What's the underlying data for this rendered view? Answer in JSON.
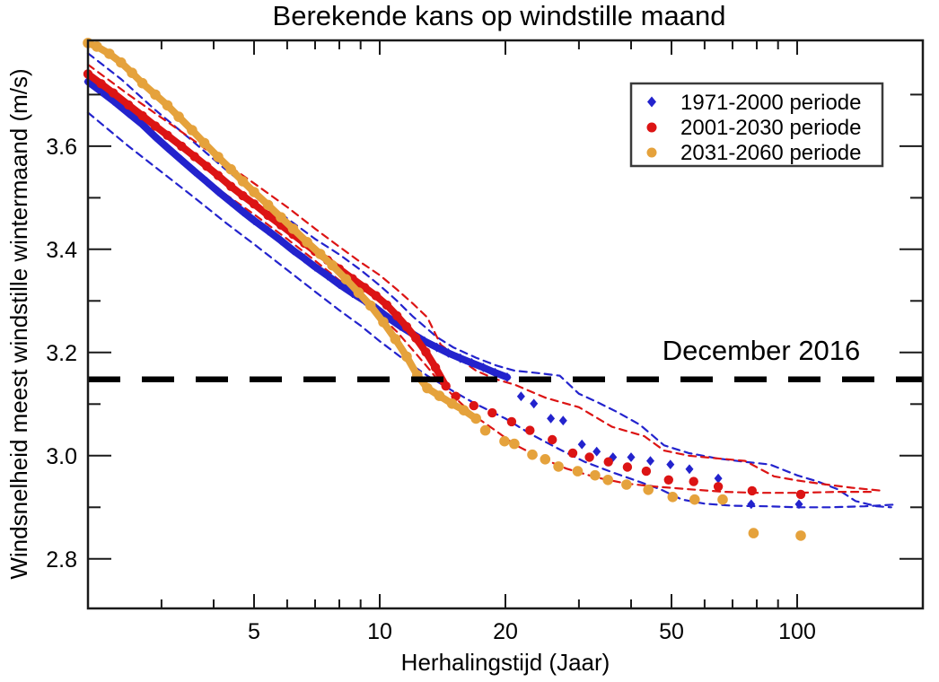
{
  "title": "Berekende kans op windstille maand",
  "annotation": {
    "label": "December 2016"
  },
  "legend": {
    "items": [
      {
        "label": "1971-2000 periode",
        "color": "#2323cd",
        "marker": "diamond"
      },
      {
        "label": "2001-2030 periode",
        "color": "#dc1414",
        "marker": "circle"
      },
      {
        "label": "2031-2060 periode",
        "color": "#e5a23c",
        "marker": "circle"
      }
    ]
  },
  "colors": {
    "series_blue": "#2323cd",
    "series_red": "#dc1414",
    "series_orange": "#e5a23c",
    "reference_line": "#000000",
    "frame": "#1a1a1a"
  },
  "chart_data": {
    "type": "scatter",
    "title": "Berekende kans op windstille maand",
    "xlabel": "Herhalingstijd (Jaar)",
    "ylabel": "Windsnelheid meest windstille wintermaand (m/s)",
    "x_scale": "log",
    "xlim": [
      2,
      200
    ],
    "ylim": [
      2.704,
      3.805
    ],
    "grid": false,
    "legend_position": "upper right",
    "x_ticks_major": [
      5,
      10,
      20,
      50,
      100
    ],
    "x_tick_labels": [
      "5",
      "10",
      "20",
      "50",
      "100"
    ],
    "x_ticks_minor": [
      3,
      4,
      6,
      7,
      8,
      9,
      30,
      40,
      60,
      70,
      80,
      90
    ],
    "y_ticks_major": [
      2.8,
      3.0,
      3.2,
      3.4,
      3.6
    ],
    "y_tick_labels": [
      "2.8",
      "3.0",
      "3.2",
      "3.4",
      "3.6"
    ],
    "y_ticks_minor": [
      2.9,
      3.1,
      3.3,
      3.5,
      3.7
    ],
    "reference_line": {
      "label": "December 2016",
      "y": 3.148,
      "style": "dashed",
      "color": "#000000"
    },
    "series": [
      {
        "name": "1971-2000 periode",
        "color": "#2323cd",
        "marker": "diamond",
        "dense": [
          [
            2.0,
            3.725
          ],
          [
            2.15,
            3.706
          ],
          [
            2.3,
            3.688
          ],
          [
            2.5,
            3.664
          ],
          [
            2.7,
            3.642
          ],
          [
            2.9,
            3.618
          ],
          [
            3.1,
            3.597
          ],
          [
            3.35,
            3.573
          ],
          [
            3.6,
            3.551
          ],
          [
            3.85,
            3.531
          ],
          [
            4.1,
            3.512
          ],
          [
            4.4,
            3.492
          ],
          [
            4.7,
            3.473
          ],
          [
            5.0,
            3.456
          ],
          [
            5.4,
            3.436
          ],
          [
            5.8,
            3.417
          ],
          [
            6.2,
            3.398
          ],
          [
            6.6,
            3.382
          ],
          [
            7.0,
            3.366
          ],
          [
            7.5,
            3.349
          ],
          [
            8.0,
            3.332
          ],
          [
            8.6,
            3.315
          ],
          [
            9.2,
            3.3
          ],
          [
            9.8,
            3.286
          ],
          [
            10.5,
            3.267
          ],
          [
            11.2,
            3.251
          ],
          [
            12.0,
            3.236
          ],
          [
            12.8,
            3.222
          ],
          [
            13.7,
            3.21
          ],
          [
            14.6,
            3.199
          ],
          [
            15.6,
            3.189
          ],
          [
            16.6,
            3.18
          ],
          [
            17.7,
            3.171
          ],
          [
            18.9,
            3.161
          ],
          [
            20.2,
            3.152
          ]
        ],
        "sparse": [
          [
            21.8,
            3.115
          ],
          [
            23.4,
            3.101
          ],
          [
            25.7,
            3.072
          ],
          [
            27.5,
            3.068
          ],
          [
            30.5,
            3.022
          ],
          [
            33.1,
            3.008
          ],
          [
            36.2,
            2.997
          ],
          [
            40.0,
            2.997
          ],
          [
            44.5,
            2.99
          ],
          [
            49.7,
            2.983
          ],
          [
            55.2,
            2.974
          ],
          [
            64.7,
            2.956
          ],
          [
            77.6,
            2.906
          ],
          [
            101,
            2.906
          ]
        ],
        "envelope_upper": [
          [
            2,
            3.78
          ],
          [
            2.4,
            3.73
          ],
          [
            2.9,
            3.67
          ],
          [
            3.5,
            3.615
          ],
          [
            4.2,
            3.56
          ],
          [
            5,
            3.51
          ],
          [
            6,
            3.46
          ],
          [
            7,
            3.42
          ],
          [
            8,
            3.39
          ],
          [
            9,
            3.36
          ],
          [
            10,
            3.33
          ],
          [
            11,
            3.3
          ],
          [
            12,
            3.27
          ],
          [
            13.7,
            3.23
          ],
          [
            15,
            3.21
          ],
          [
            17,
            3.19
          ],
          [
            19,
            3.175
          ],
          [
            21,
            3.165
          ],
          [
            24,
            3.16
          ],
          [
            27,
            3.155
          ],
          [
            30,
            3.12
          ],
          [
            33,
            3.105
          ],
          [
            37,
            3.085
          ],
          [
            42,
            3.06
          ],
          [
            48,
            3.02
          ],
          [
            55,
            3.005
          ],
          [
            64,
            2.995
          ],
          [
            75,
            2.988
          ],
          [
            86,
            2.983
          ],
          [
            100,
            2.962
          ],
          [
            112,
            2.95
          ],
          [
            125,
            2.935
          ],
          [
            138,
            2.912
          ],
          [
            155,
            2.902
          ],
          [
            168,
            2.9
          ]
        ],
        "envelope_lower": [
          [
            2,
            3.665
          ],
          [
            2.5,
            3.6
          ],
          [
            3,
            3.55
          ],
          [
            3.6,
            3.5
          ],
          [
            4.3,
            3.45
          ],
          [
            5,
            3.41
          ],
          [
            6,
            3.36
          ],
          [
            7,
            3.318
          ],
          [
            8,
            3.282
          ],
          [
            9,
            3.252
          ],
          [
            10,
            3.222
          ],
          [
            11.5,
            3.185
          ],
          [
            13,
            3.155
          ],
          [
            15,
            3.125
          ],
          [
            17,
            3.1
          ],
          [
            20,
            3.072
          ],
          [
            23,
            3.042
          ],
          [
            27,
            3.012
          ],
          [
            31,
            2.988
          ],
          [
            36,
            2.968
          ],
          [
            41,
            2.952
          ],
          [
            47,
            2.935
          ],
          [
            53,
            2.915
          ],
          [
            60,
            2.907
          ],
          [
            70,
            2.903
          ],
          [
            85,
            2.902
          ],
          [
            100,
            2.9
          ],
          [
            120,
            2.9
          ],
          [
            145,
            2.902
          ],
          [
            170,
            2.905
          ]
        ]
      },
      {
        "name": "2001-2030 periode",
        "color": "#dc1414",
        "marker": "circle",
        "dense": [
          [
            2.0,
            3.74
          ],
          [
            2.15,
            3.721
          ],
          [
            2.3,
            3.703
          ],
          [
            2.5,
            3.68
          ],
          [
            2.7,
            3.659
          ],
          [
            2.9,
            3.639
          ],
          [
            3.1,
            3.621
          ],
          [
            3.35,
            3.6
          ],
          [
            3.6,
            3.58
          ],
          [
            3.85,
            3.561
          ],
          [
            4.1,
            3.543
          ],
          [
            4.4,
            3.522
          ],
          [
            4.7,
            3.504
          ],
          [
            5.0,
            3.488
          ],
          [
            5.4,
            3.466
          ],
          [
            5.8,
            3.447
          ],
          [
            6.2,
            3.429
          ],
          [
            6.6,
            3.412
          ],
          [
            7.0,
            3.396
          ],
          [
            7.5,
            3.379
          ],
          [
            8.0,
            3.362
          ],
          [
            8.6,
            3.343
          ],
          [
            9.2,
            3.326
          ],
          [
            9.8,
            3.31
          ],
          [
            10.4,
            3.292
          ],
          [
            11.0,
            3.271
          ],
          [
            11.6,
            3.25
          ],
          [
            12.2,
            3.228
          ],
          [
            12.9,
            3.201
          ],
          [
            13.6,
            3.171
          ],
          [
            14.4,
            3.135
          ]
        ],
        "sparse": [
          [
            15.2,
            3.115
          ],
          [
            16.8,
            3.097
          ],
          [
            18.6,
            3.083
          ],
          [
            20.7,
            3.066
          ],
          [
            22.9,
            3.049
          ],
          [
            25.9,
            3.031
          ],
          [
            29.0,
            3.005
          ],
          [
            31.8,
            2.997
          ],
          [
            35.3,
            2.988
          ],
          [
            39.2,
            2.978
          ],
          [
            43.5,
            2.97
          ],
          [
            49.2,
            2.953
          ],
          [
            56.5,
            2.95
          ],
          [
            64.7,
            2.94
          ],
          [
            78.0,
            2.932
          ],
          [
            102,
            2.925
          ]
        ],
        "envelope_upper": [
          [
            2,
            3.758
          ],
          [
            2.5,
            3.7
          ],
          [
            3,
            3.655
          ],
          [
            3.6,
            3.61
          ],
          [
            4.3,
            3.565
          ],
          [
            5,
            3.528
          ],
          [
            6,
            3.482
          ],
          [
            7,
            3.44
          ],
          [
            8,
            3.405
          ],
          [
            9,
            3.375
          ],
          [
            10,
            3.35
          ],
          [
            11,
            3.322
          ],
          [
            12,
            3.295
          ],
          [
            13,
            3.268
          ],
          [
            14,
            3.215
          ],
          [
            15.4,
            3.19
          ],
          [
            17,
            3.165
          ],
          [
            19,
            3.148
          ],
          [
            21,
            3.138
          ],
          [
            25,
            3.112
          ],
          [
            30,
            3.094
          ],
          [
            36,
            3.056
          ],
          [
            43,
            3.038
          ],
          [
            48,
            3.01
          ],
          [
            55,
            3.0
          ],
          [
            64,
            2.995
          ],
          [
            75,
            2.99
          ],
          [
            88,
            2.96
          ],
          [
            100,
            2.952
          ],
          [
            115,
            2.945
          ],
          [
            135,
            2.938
          ],
          [
            160,
            2.932
          ]
        ],
        "envelope_lower": [
          [
            2,
            3.722
          ],
          [
            2.5,
            3.66
          ],
          [
            3,
            3.605
          ],
          [
            3.6,
            3.555
          ],
          [
            4.3,
            3.505
          ],
          [
            5,
            3.468
          ],
          [
            6,
            3.42
          ],
          [
            7,
            3.378
          ],
          [
            8,
            3.34
          ],
          [
            9,
            3.305
          ],
          [
            10,
            3.272
          ],
          [
            11,
            3.24
          ],
          [
            12,
            3.205
          ],
          [
            13,
            3.172
          ],
          [
            14,
            3.14
          ],
          [
            15.5,
            3.105
          ],
          [
            17,
            3.075
          ],
          [
            19,
            3.048
          ],
          [
            21,
            3.022
          ],
          [
            24,
            2.998
          ],
          [
            28,
            2.975
          ],
          [
            33,
            2.958
          ],
          [
            39,
            2.946
          ],
          [
            46,
            2.94
          ],
          [
            55,
            2.935
          ],
          [
            67,
            2.93
          ],
          [
            80,
            2.928
          ],
          [
            100,
            2.928
          ],
          [
            125,
            2.93
          ],
          [
            150,
            2.93
          ]
        ]
      },
      {
        "name": "2031-2060 periode",
        "color": "#e5a23c",
        "marker": "circle",
        "dense": [
          [
            2.0,
            3.8
          ],
          [
            2.1,
            3.793
          ],
          [
            2.25,
            3.779
          ],
          [
            2.4,
            3.762
          ],
          [
            2.55,
            3.742
          ],
          [
            2.7,
            3.722
          ],
          [
            2.9,
            3.7
          ],
          [
            3.1,
            3.679
          ],
          [
            3.3,
            3.657
          ],
          [
            3.55,
            3.631
          ],
          [
            3.8,
            3.606
          ],
          [
            4.1,
            3.579
          ],
          [
            4.4,
            3.555
          ],
          [
            4.7,
            3.532
          ],
          [
            5.0,
            3.511
          ],
          [
            5.4,
            3.486
          ],
          [
            5.8,
            3.462
          ],
          [
            6.2,
            3.44
          ],
          [
            6.7,
            3.414
          ],
          [
            7.2,
            3.391
          ],
          [
            7.7,
            3.369
          ],
          [
            8.3,
            3.342
          ],
          [
            8.9,
            3.316
          ],
          [
            9.5,
            3.291
          ],
          [
            10.2,
            3.259
          ],
          [
            10.9,
            3.226
          ],
          [
            11.6,
            3.192
          ],
          [
            12.3,
            3.156
          ],
          [
            13.0,
            3.131
          ],
          [
            13.9,
            3.116
          ],
          [
            14.9,
            3.101
          ],
          [
            15.9,
            3.088
          ],
          [
            17.0,
            3.072
          ]
        ],
        "sparse": [
          [
            17.9,
            3.049
          ],
          [
            19.9,
            3.028
          ],
          [
            21.0,
            3.023
          ],
          [
            23.2,
            3.002
          ],
          [
            24.9,
            2.993
          ],
          [
            26.8,
            2.979
          ],
          [
            29.8,
            2.97
          ],
          [
            32.8,
            2.962
          ],
          [
            35.2,
            2.953
          ],
          [
            39.0,
            2.944
          ],
          [
            44.0,
            2.934
          ],
          [
            50.3,
            2.92
          ],
          [
            56.8,
            2.915
          ],
          [
            66.3,
            2.915
          ],
          [
            78.6,
            2.85
          ],
          [
            102,
            2.845
          ]
        ],
        "envelope_upper": null,
        "envelope_lower": null
      }
    ]
  }
}
